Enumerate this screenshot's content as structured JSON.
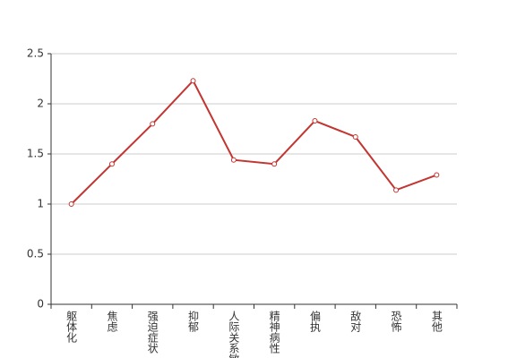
{
  "chart_data": {
    "type": "line",
    "categories": [
      "躯体化",
      "焦虑",
      "强迫症状",
      "抑郁",
      "人际关系敏感",
      "精神病性",
      "偏执",
      "敌对",
      "恐怖",
      "其他"
    ],
    "series": [
      {
        "color": "#c23531",
        "values": [
          1.0,
          1.4,
          1.8,
          2.23,
          1.44,
          1.4,
          1.83,
          1.67,
          1.14,
          1.29
        ]
      }
    ],
    "ylim": [
      0,
      2.5
    ],
    "yticks": [
      0,
      0.5,
      1,
      1.5,
      2,
      2.5
    ],
    "grid": true
  }
}
